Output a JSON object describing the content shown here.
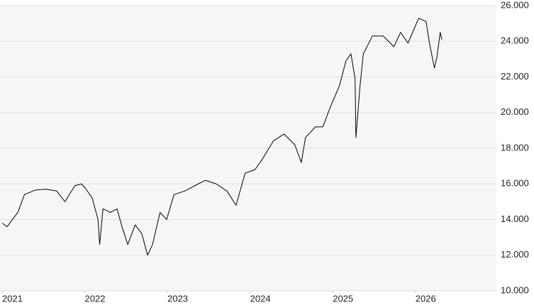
{
  "chart_data": {
    "type": "line",
    "x": [
      2021.0,
      2021.06,
      2021.19,
      2021.27,
      2021.4,
      2021.53,
      2021.66,
      2021.76,
      2021.88,
      2021.96,
      2022.0,
      2022.09,
      2022.16,
      2022.18,
      2022.22,
      2022.31,
      2022.39,
      2022.45,
      2022.52,
      2022.61,
      2022.69,
      2022.76,
      2022.82,
      2022.91,
      2022.99,
      2023.08,
      2023.21,
      2023.33,
      2023.46,
      2023.59,
      2023.72,
      2023.83,
      2023.94,
      2024.06,
      2024.15,
      2024.28,
      2024.41,
      2024.54,
      2024.62,
      2024.67,
      2024.79,
      2024.88,
      2024.97,
      2025.08,
      2025.16,
      2025.22,
      2025.27,
      2025.28,
      2025.33,
      2025.37,
      2025.48,
      2025.61,
      2025.74,
      2025.82,
      2025.91,
      2026.04,
      2026.13,
      2026.17,
      2026.23,
      2026.26,
      2026.3,
      2026.32
    ],
    "series": [
      {
        "color": "#000000",
        "values": [
          13800,
          13600,
          14400,
          15400,
          15650,
          15700,
          15600,
          15000,
          15900,
          16000,
          15800,
          15200,
          14000,
          12600,
          14600,
          14400,
          14600,
          13600,
          12600,
          13700,
          13200,
          12000,
          12600,
          14400,
          14000,
          15400,
          15600,
          15900,
          16200,
          16000,
          15600,
          14800,
          16600,
          16800,
          17400,
          18400,
          18800,
          18200,
          17200,
          18600,
          19200,
          19200,
          20300,
          21500,
          22900,
          23300,
          21900,
          18600,
          21500,
          23300,
          24300,
          24300,
          23700,
          24500,
          23900,
          25300,
          25100,
          23900,
          22500,
          23100,
          24500,
          24100
        ]
      }
    ],
    "xlim": [
      2021,
      2026.98
    ],
    "xticks": [
      2021,
      2022,
      2023,
      2024,
      2025,
      2026
    ],
    "ylim": [
      10000,
      26000
    ],
    "yticks": [
      {
        "value": 10000,
        "label": "10.000"
      },
      {
        "value": 12000,
        "label": "12.000"
      },
      {
        "value": 14000,
        "label": "14.000"
      },
      {
        "value": 16000,
        "label": "16.000"
      },
      {
        "value": 18000,
        "label": "18.000"
      },
      {
        "value": 20000,
        "label": "20.000"
      },
      {
        "value": 22000,
        "label": "22.000"
      },
      {
        "value": 24000,
        "label": "24.000"
      },
      {
        "value": 26000,
        "label": "26.000"
      }
    ],
    "grid": true
  }
}
